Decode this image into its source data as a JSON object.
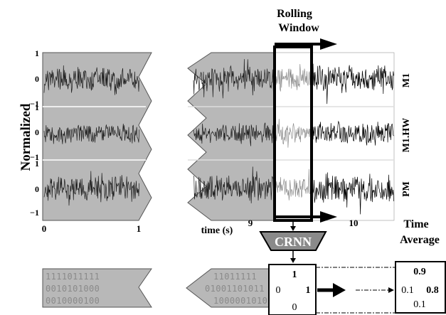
{
  "title": {
    "line1": "Rolling",
    "line2": "Window"
  },
  "ylabel": "Normalized",
  "yticks": [
    "1",
    "0",
    "−1"
  ],
  "xticks_left": [
    "0",
    "1"
  ],
  "xticks_right": [
    "9",
    "10"
  ],
  "xlabel": "time (s)",
  "channels": [
    "M1",
    "M1.HW",
    "PM"
  ],
  "model_label": "CRNN",
  "time_average": {
    "line1": "Time",
    "line2": "Average"
  },
  "bits_rows": [
    "1111011111",
    "0010101000",
    "0010000100"
  ],
  "bits_rows_right": [
    "11011111",
    "01001101011",
    "1000001010"
  ],
  "output_matrix": {
    "top": "1",
    "left": "0",
    "right": "1",
    "bottom": "0"
  },
  "averaged_output": {
    "top": "0.9",
    "left": "0.1",
    "right": "0.8",
    "bottom": "0.1"
  },
  "colors": {
    "panel": "#b8b8b8",
    "signal": "#1e1e1e",
    "window_signal": "#8c8c8c",
    "frame": "#000000",
    "crnn": "#8a8a8a"
  }
}
